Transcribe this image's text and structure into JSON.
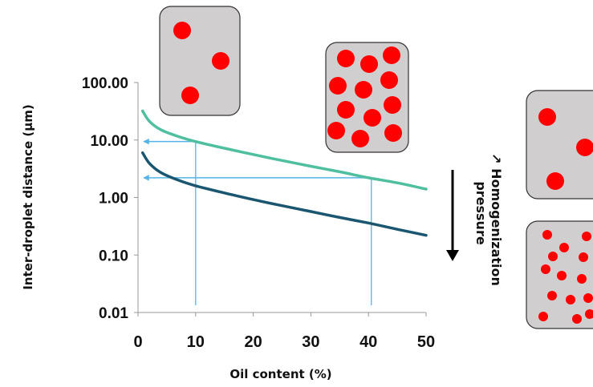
{
  "chart_data": {
    "type": "line",
    "xlabel": "Oil content (%)",
    "ylabel": "Inter-droplet distance (µm)",
    "y_scale": "log",
    "xlim": [
      0,
      50
    ],
    "ylim": [
      0.01,
      100
    ],
    "x_ticks": [
      "0",
      "10",
      "20",
      "30",
      "40",
      "50"
    ],
    "y_ticks": [
      "0.01",
      "0.10",
      "1.00",
      "10.00",
      "100.00"
    ],
    "grid": false,
    "series": [
      {
        "color": "#4fbf9f",
        "x": [
          0.8,
          2,
          4,
          7,
          10,
          15,
          20,
          25,
          30,
          35,
          40,
          45,
          50
        ],
        "values": [
          32,
          21,
          15,
          11.5,
          9.4,
          7.2,
          5.6,
          4.4,
          3.5,
          2.8,
          2.2,
          1.8,
          1.4
        ]
      },
      {
        "color": "#1a5670",
        "x": [
          0.8,
          2,
          4,
          7,
          10,
          15,
          20,
          25,
          30,
          35,
          40,
          45,
          50
        ],
        "values": [
          6,
          3.9,
          2.7,
          2.0,
          1.6,
          1.2,
          0.92,
          0.72,
          0.57,
          0.45,
          0.36,
          0.28,
          0.22
        ]
      }
    ],
    "reference_lines": [
      {
        "x": 10,
        "y": 9.4,
        "color": "#55b4e6"
      },
      {
        "x": 40.5,
        "y": 2.2,
        "color": "#55b4e6"
      }
    ],
    "annotation": {
      "lines": [
        "↗ Homogenization",
        "pressure"
      ],
      "arrow": "down"
    }
  },
  "insets": {
    "low_oil": {
      "droplets": 3,
      "droplet_color": "#ff0000",
      "box_color": "#d0cecf"
    },
    "high_oil": {
      "droplets": 13,
      "droplet_color": "#ff0000",
      "box_color": "#d0cecf"
    },
    "low_pressure": {
      "droplets": 3,
      "droplet_color": "#ff0000",
      "box_color": "#d0cecf"
    },
    "high_pressure": {
      "droplets": 14,
      "droplet_color": "#ff0000",
      "box_color": "#d0cecf"
    }
  }
}
